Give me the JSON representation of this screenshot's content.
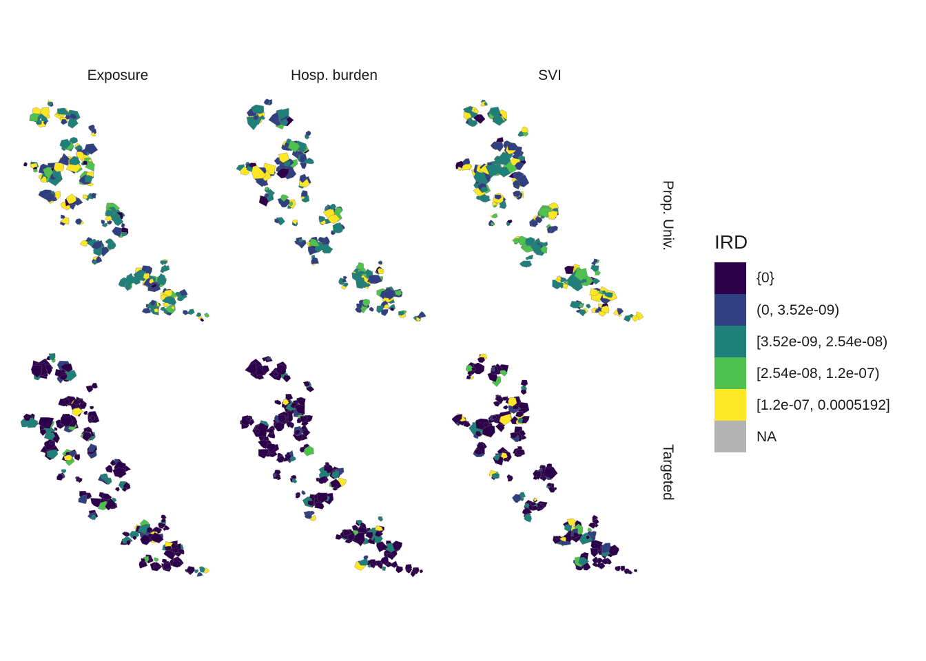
{
  "columns": [
    "Exposure",
    "Hosp. burden",
    "SVI"
  ],
  "rows": [
    "Prop. Univ.",
    "Targeted"
  ],
  "legend": {
    "title": "IRD",
    "items": [
      {
        "label": "{0}",
        "color": "#2d004b"
      },
      {
        "label": "(0, 3.52e-09)",
        "color": "#2f3f7f"
      },
      {
        "label": "[3.52e-09, 2.54e-08)",
        "color": "#1f8079"
      },
      {
        "label": "[2.54e-08, 1.2e-07)",
        "color": "#4fc14e"
      },
      {
        "label": "[1.2e-07, 0.0005192]",
        "color": "#fde725"
      },
      {
        "label": "NA",
        "color": "#b3b3b3"
      }
    ]
  },
  "region_shares": {
    "Prop. Univ.": {
      "Exposure": [
        0.05,
        0.3,
        0.3,
        0.1,
        0.25
      ],
      "Hosp. burden": [
        0.05,
        0.35,
        0.3,
        0.12,
        0.18
      ],
      "SVI": [
        0.05,
        0.25,
        0.3,
        0.18,
        0.22
      ]
    },
    "Targeted": {
      "Exposure": [
        0.7,
        0.1,
        0.12,
        0.03,
        0.05
      ],
      "Hosp. burden": [
        0.78,
        0.1,
        0.09,
        0.02,
        0.01
      ],
      "SVI": [
        0.72,
        0.1,
        0.1,
        0.03,
        0.05
      ]
    }
  }
}
